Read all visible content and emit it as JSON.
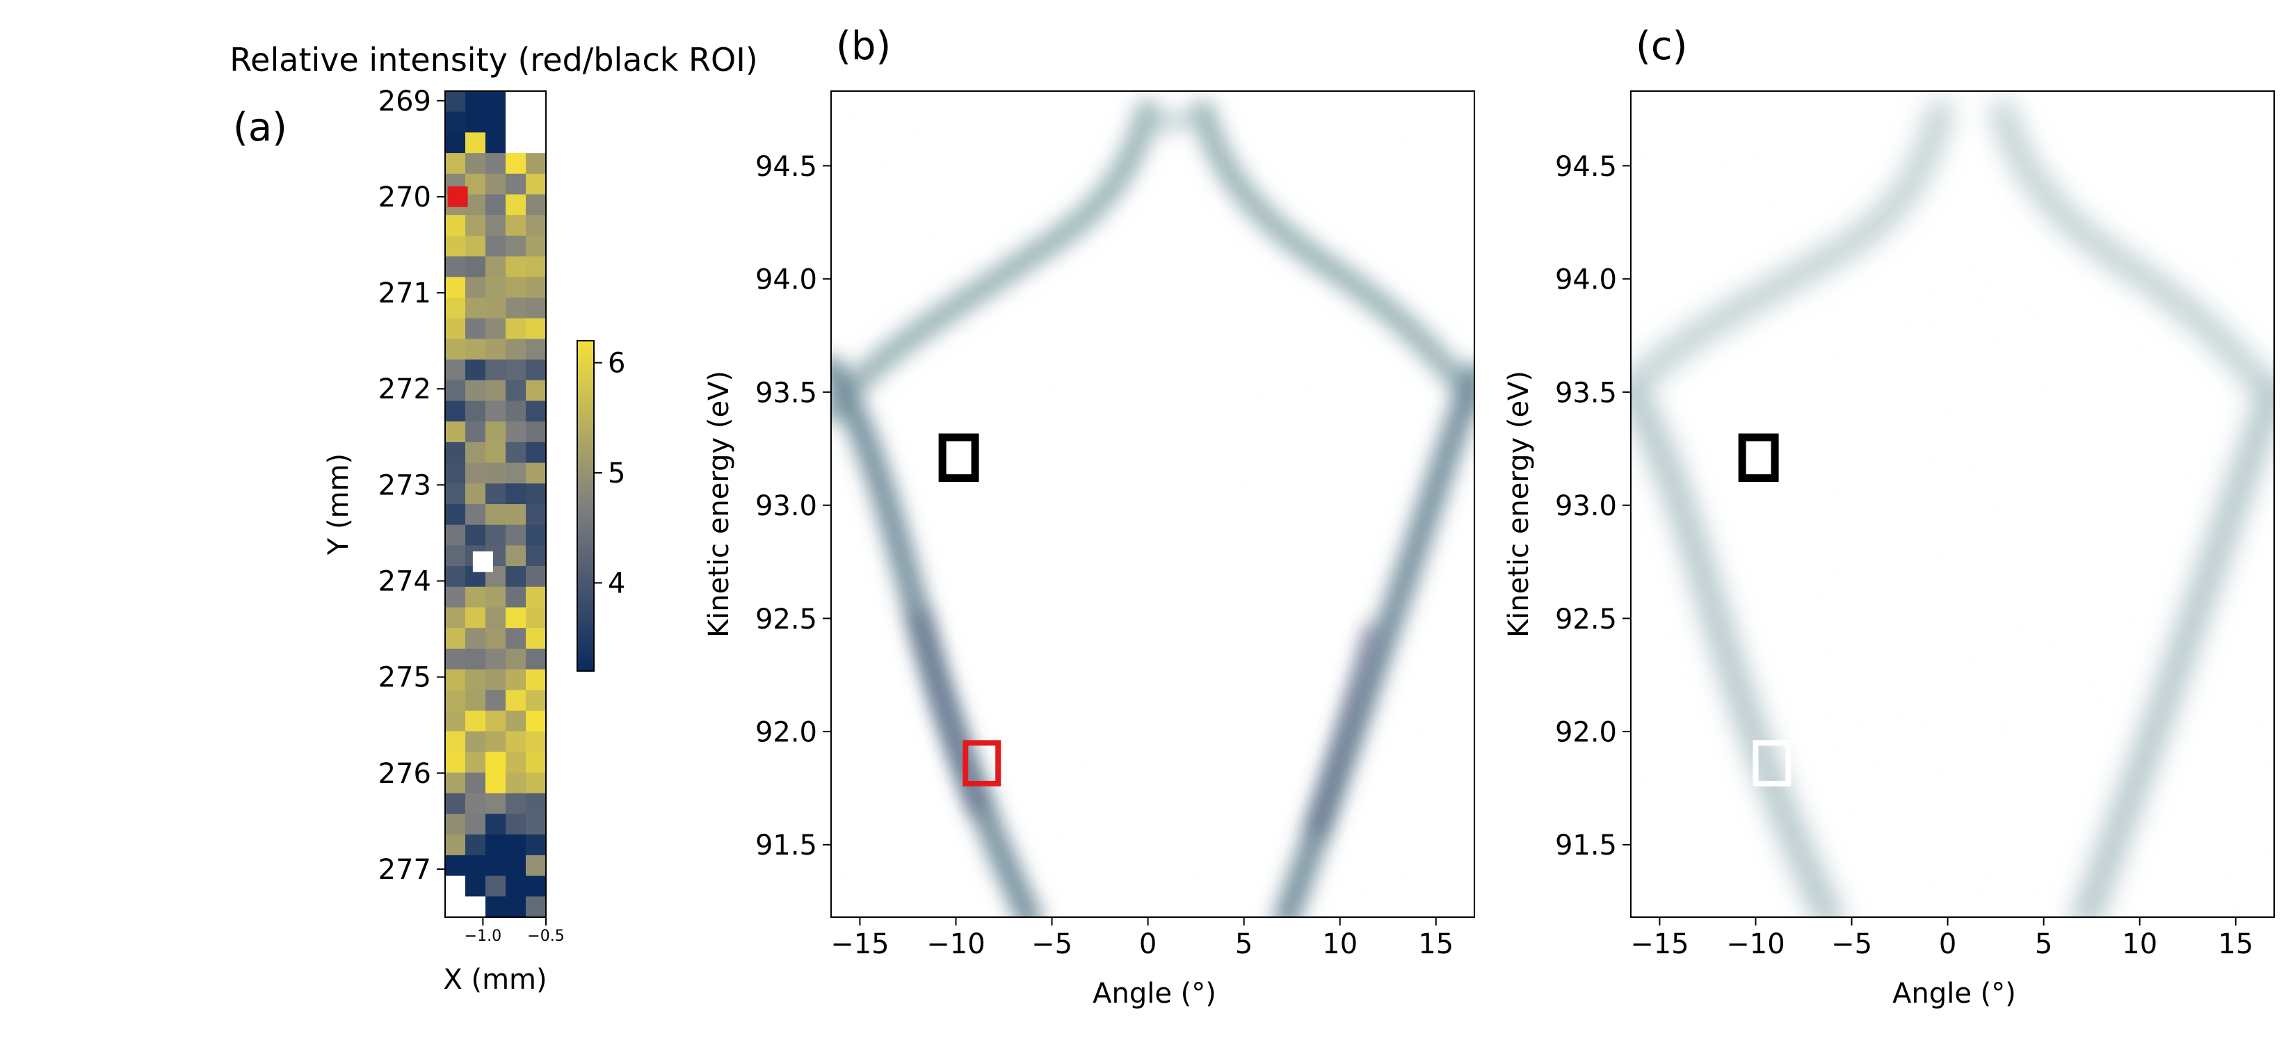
{
  "panel_a": {
    "title": "Relative intensity (red/black ROI)",
    "tag": "(a)",
    "xlabel": "X (mm)",
    "ylabel": "Y (mm)",
    "xticks": [
      "−1.0",
      "−0.5"
    ],
    "yticks": [
      "269",
      "270",
      "271",
      "272",
      "273",
      "274",
      "275",
      "276",
      "277"
    ],
    "colorbar_ticks": [
      "4",
      "5",
      "6"
    ]
  },
  "panel_b": {
    "tag": "(b)",
    "xlabel": "Angle (°)",
    "ylabel": "Kinetic energy (eV)",
    "xticks": [
      "−15",
      "−10",
      "−5",
      "0",
      "5",
      "10",
      "15"
    ],
    "yticks": [
      "91.5",
      "92.0",
      "92.5",
      "93.0",
      "93.5",
      "94.0",
      "94.5"
    ]
  },
  "panel_c": {
    "tag": "(c)",
    "xlabel": "Angle (°)",
    "ylabel": "Kinetic energy (eV)",
    "xticks": [
      "−15",
      "−10",
      "−5",
      "0",
      "5",
      "10",
      "15"
    ],
    "yticks": [
      "91.5",
      "92.0",
      "92.5",
      "93.0",
      "93.5",
      "94.0",
      "94.5"
    ]
  },
  "colors": {
    "heat_low": "#0a2a5e",
    "heat_mid": "#7f7f7f",
    "heat_high": "#f5e03a",
    "band": "#7f9fa6",
    "roi_red": "#e31a1c",
    "roi_black": "#000000",
    "roi_white": "#ffffff"
  },
  "chart_data": [
    {
      "type": "heatmap",
      "title": "Relative intensity (red/black ROI)",
      "xlabel": "X (mm)",
      "ylabel": "Y (mm)",
      "xlim": [
        -1.3,
        -0.5
      ],
      "ylim": [
        277.5,
        268.9
      ],
      "colorbar_range": [
        3.2,
        6.2
      ],
      "colorbar_ticks": [
        4,
        5,
        6
      ],
      "markers": [
        {
          "color": "red",
          "x": -1.2,
          "y": 270.0
        },
        {
          "color": "white",
          "x": -1.0,
          "y": 273.8
        }
      ]
    },
    {
      "type": "heatmap",
      "xlabel": "Angle (°)",
      "ylabel": "Kinetic energy (eV)",
      "xlim": [
        -16.5,
        17
      ],
      "ylim": [
        91.18,
        94.83
      ],
      "rois": [
        {
          "color": "black",
          "x": [
            -10.7,
            -9.0
          ],
          "y": [
            93.12,
            93.3
          ]
        },
        {
          "color": "red",
          "x": [
            -9.5,
            -7.8
          ],
          "y": [
            91.77,
            91.95
          ]
        }
      ]
    },
    {
      "type": "heatmap",
      "xlabel": "Angle (°)",
      "ylabel": "Kinetic energy (eV)",
      "xlim": [
        -16.5,
        17
      ],
      "ylim": [
        91.18,
        94.83
      ],
      "rois": [
        {
          "color": "black",
          "x": [
            -10.7,
            -9.0
          ],
          "y": [
            93.12,
            93.3
          ]
        },
        {
          "color": "white",
          "x": [
            -10.0,
            -8.3
          ],
          "y": [
            91.77,
            91.95
          ]
        }
      ]
    }
  ]
}
